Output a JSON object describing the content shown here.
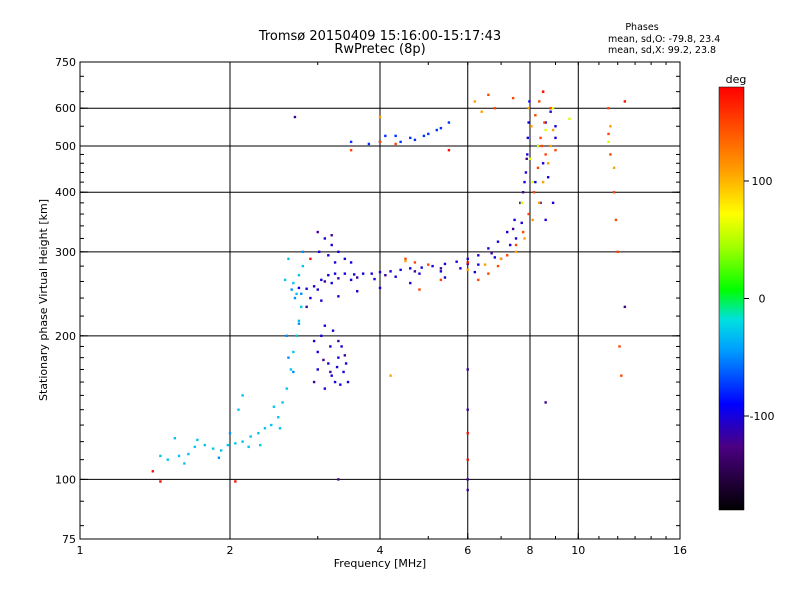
{
  "chart_data": {
    "type": "scatter",
    "title": "Tromsø 20150409 15:16:00-15:17:43",
    "subtitle": "RwPretec (8p)",
    "xlabel": "Frequency [MHz]",
    "ylabel": "Stationary phase Virtual Height [km]",
    "x_scale": "log",
    "y_scale": "log",
    "xlim": [
      1,
      16
    ],
    "ylim": [
      75,
      750
    ],
    "x_ticks": [
      {
        "value": 1,
        "label": "1"
      },
      {
        "value": 2,
        "label": "2"
      },
      {
        "value": 4,
        "label": "4"
      },
      {
        "value": 6,
        "label": "6"
      },
      {
        "value": 8,
        "label": "8"
      },
      {
        "value": 10,
        "label": "10"
      },
      {
        "value": 16,
        "label": "16"
      }
    ],
    "y_ticks": [
      {
        "value": 75,
        "label": "75"
      },
      {
        "value": 100,
        "label": "100"
      },
      {
        "value": 200,
        "label": "200"
      },
      {
        "value": 300,
        "label": "300"
      },
      {
        "value": 400,
        "label": "400"
      },
      {
        "value": 500,
        "label": "500"
      },
      {
        "value": 600,
        "label": "600"
      },
      {
        "value": 750,
        "label": "750"
      }
    ],
    "x_grid": [
      2,
      4,
      6,
      8,
      10
    ],
    "y_grid": [
      100,
      200,
      300,
      400,
      500,
      600
    ],
    "phase_stats": {
      "header": "Phases",
      "line_o": "mean, sd,O: -79.8, 23.4",
      "line_x": "mean, sd,X:  99.2, 23.8"
    },
    "colorbar": {
      "unit": "deg",
      "range": [
        -180,
        180
      ],
      "ticks": [
        {
          "value": 100,
          "label": "100"
        },
        {
          "value": 0,
          "label": "0"
        },
        {
          "value": -100,
          "label": "-100"
        }
      ]
    },
    "series": [
      {
        "phase": -35,
        "points": [
          [
            1.5,
            110
          ],
          [
            1.58,
            112
          ],
          [
            1.65,
            113
          ],
          [
            1.7,
            117
          ],
          [
            1.78,
            118
          ],
          [
            1.85,
            116
          ],
          [
            1.92,
            115
          ],
          [
            1.98,
            118
          ],
          [
            2.05,
            119
          ],
          [
            2.12,
            120
          ],
          [
            2.2,
            123
          ],
          [
            2.28,
            125
          ],
          [
            2.35,
            128
          ],
          [
            2.42,
            130
          ],
          [
            2.5,
            135
          ],
          [
            2.55,
            145
          ],
          [
            2.6,
            155
          ],
          [
            2.65,
            170
          ],
          [
            2.68,
            185
          ],
          [
            2.72,
            200
          ],
          [
            2.75,
            215
          ],
          [
            2.78,
            230
          ],
          [
            2.72,
            245
          ],
          [
            2.68,
            258
          ],
          [
            2.75,
            268
          ],
          [
            2.8,
            280
          ],
          [
            2.62,
            290
          ],
          [
            2.58,
            262
          ],
          [
            1.55,
            122
          ],
          [
            1.62,
            108
          ],
          [
            2.08,
            140
          ],
          [
            2.12,
            150
          ],
          [
            2.3,
            118
          ],
          [
            2.45,
            142
          ],
          [
            1.45,
            112
          ],
          [
            1.72,
            121
          ],
          [
            2.18,
            117
          ],
          [
            2.52,
            128
          ]
        ]
      },
      {
        "phase": -55,
        "points": [
          [
            2.66,
            250
          ],
          [
            2.7,
            240
          ],
          [
            2.78,
            245
          ],
          [
            2.62,
            180
          ],
          [
            2.68,
            168
          ],
          [
            2.75,
            212
          ],
          [
            2.8,
            300
          ],
          [
            1.9,
            111
          ],
          [
            2.0,
            125
          ],
          [
            2.6,
            200
          ]
        ]
      },
      {
        "phase": -110,
        "points": [
          [
            2.75,
            252
          ],
          [
            2.85,
            251
          ],
          [
            2.95,
            254
          ],
          [
            3.05,
            262
          ],
          [
            3.15,
            268
          ],
          [
            3.25,
            270
          ],
          [
            3.4,
            270
          ],
          [
            3.55,
            269
          ],
          [
            3.7,
            270
          ],
          [
            3.85,
            270
          ],
          [
            4.0,
            272
          ],
          [
            4.2,
            273
          ],
          [
            4.4,
            275
          ],
          [
            4.6,
            277
          ],
          [
            4.85,
            278
          ],
          [
            5.1,
            280
          ],
          [
            5.4,
            283
          ],
          [
            5.7,
            286
          ],
          [
            6.0,
            290
          ],
          [
            6.3,
            295
          ],
          [
            6.6,
            305
          ],
          [
            6.9,
            315
          ],
          [
            7.2,
            330
          ],
          [
            7.45,
            350
          ],
          [
            7.65,
            380
          ],
          [
            7.8,
            420
          ],
          [
            7.9,
            480
          ],
          [
            7.95,
            560
          ],
          [
            7.98,
            620
          ],
          [
            3.0,
            250
          ],
          [
            3.2,
            258
          ],
          [
            3.5,
            262
          ],
          [
            3.9,
            263
          ],
          [
            4.3,
            266
          ],
          [
            4.8,
            270
          ],
          [
            5.3,
            273
          ],
          [
            5.8,
            277
          ],
          [
            6.3,
            282
          ],
          [
            6.8,
            292
          ],
          [
            7.3,
            310
          ],
          [
            7.7,
            345
          ],
          [
            3.0,
            185
          ],
          [
            3.05,
            200
          ],
          [
            3.1,
            210
          ],
          [
            3.15,
            175
          ],
          [
            3.2,
            165
          ],
          [
            3.3,
            180
          ],
          [
            3.35,
            190
          ],
          [
            3.25,
            160
          ],
          [
            3.1,
            155
          ],
          [
            3.0,
            170
          ],
          [
            2.95,
            195
          ],
          [
            3.28,
            172
          ],
          [
            3.38,
            168
          ],
          [
            3.02,
            300
          ],
          [
            3.1,
            320
          ],
          [
            3.2,
            310
          ],
          [
            3.3,
            300
          ],
          [
            3.4,
            290
          ],
          [
            3.5,
            285
          ],
          [
            3.15,
            295
          ],
          [
            3.25,
            285
          ],
          [
            8.3,
            500
          ],
          [
            8.5,
            460
          ],
          [
            8.7,
            430
          ],
          [
            8.9,
            380
          ],
          [
            9.0,
            520
          ],
          [
            8.6,
            560
          ],
          [
            8.8,
            590
          ],
          [
            9.0,
            550
          ],
          [
            8.2,
            420
          ],
          [
            8.4,
            380
          ],
          [
            8.6,
            350
          ],
          [
            2.9,
            240
          ],
          [
            3.05,
            237
          ],
          [
            3.3,
            242
          ],
          [
            3.6,
            248
          ],
          [
            4.0,
            252
          ],
          [
            4.6,
            258
          ],
          [
            5.4,
            265
          ],
          [
            6.2,
            272
          ],
          [
            7.0,
            290
          ],
          [
            7.5,
            320
          ],
          [
            7.85,
            440
          ],
          [
            7.92,
            520
          ],
          [
            3.18,
            190
          ],
          [
            3.22,
            205
          ],
          [
            3.33,
            158
          ],
          [
            3.42,
            175
          ],
          [
            3.45,
            160
          ]
        ]
      },
      {
        "phase": -130,
        "points": [
          [
            3.1,
            260
          ],
          [
            3.3,
            264
          ],
          [
            3.6,
            265
          ],
          [
            4.1,
            268
          ],
          [
            4.7,
            273
          ],
          [
            5.3,
            277
          ],
          [
            6.0,
            283
          ],
          [
            6.7,
            298
          ],
          [
            7.4,
            335
          ],
          [
            7.75,
            400
          ],
          [
            7.88,
            470
          ],
          [
            2.95,
            160
          ],
          [
            3.08,
            178
          ],
          [
            3.18,
            168
          ],
          [
            3.3,
            195
          ],
          [
            3.4,
            182
          ],
          [
            2.85,
            230
          ],
          [
            3.0,
            330
          ],
          [
            3.2,
            325
          ],
          [
            6.0,
            170
          ],
          [
            6.0,
            140
          ],
          [
            6.0,
            100
          ],
          [
            6.0,
            95
          ],
          [
            8.6,
            145
          ],
          [
            3.3,
            100
          ],
          [
            12.4,
            230
          ],
          [
            2.7,
            575
          ]
        ]
      },
      {
        "phase": -85,
        "points": [
          [
            3.5,
            510
          ],
          [
            3.8,
            505
          ],
          [
            4.0,
            510
          ],
          [
            4.3,
            525
          ],
          [
            4.6,
            520
          ],
          [
            4.9,
            525
          ],
          [
            5.2,
            540
          ],
          [
            5.5,
            560
          ],
          [
            4.1,
            525
          ],
          [
            4.4,
            510
          ],
          [
            4.7,
            515
          ],
          [
            5.0,
            530
          ],
          [
            5.3,
            545
          ]
        ]
      },
      {
        "phase": 150,
        "points": [
          [
            6.3,
            262
          ],
          [
            6.6,
            270
          ],
          [
            6.9,
            280
          ],
          [
            7.2,
            295
          ],
          [
            7.5,
            310
          ],
          [
            7.75,
            330
          ],
          [
            7.95,
            360
          ],
          [
            8.15,
            400
          ],
          [
            8.3,
            450
          ],
          [
            8.45,
            500
          ],
          [
            8.55,
            560
          ],
          [
            8.35,
            620
          ],
          [
            8.2,
            580
          ],
          [
            8.4,
            520
          ],
          [
            8.6,
            480
          ],
          [
            6.6,
            640
          ],
          [
            6.8,
            600
          ],
          [
            4.5,
            290
          ],
          [
            4.7,
            285
          ],
          [
            5.0,
            282
          ],
          [
            4.8,
            250
          ],
          [
            5.3,
            262
          ],
          [
            7.4,
            630
          ],
          [
            8.5,
            650
          ],
          [
            8.8,
            600
          ],
          [
            9.0,
            490
          ],
          [
            11.5,
            600
          ],
          [
            11.5,
            530
          ],
          [
            11.6,
            480
          ],
          [
            11.8,
            400
          ],
          [
            11.9,
            350
          ],
          [
            12.0,
            300
          ],
          [
            12.1,
            190
          ],
          [
            12.2,
            165
          ],
          [
            4.0,
            510
          ],
          [
            4.3,
            505
          ],
          [
            3.5,
            490
          ]
        ]
      },
      {
        "phase": 110,
        "points": [
          [
            6.0,
            275
          ],
          [
            6.5,
            282
          ],
          [
            7.0,
            290
          ],
          [
            7.5,
            300
          ],
          [
            7.8,
            320
          ],
          [
            8.1,
            350
          ],
          [
            8.35,
            380
          ],
          [
            8.5,
            420
          ],
          [
            8.7,
            460
          ],
          [
            8.8,
            500
          ],
          [
            8.9,
            540
          ],
          [
            7.95,
            600
          ],
          [
            8.05,
            550
          ],
          [
            11.6,
            550
          ],
          [
            11.8,
            450
          ],
          [
            6.2,
            620
          ],
          [
            6.4,
            590
          ],
          [
            4.2,
            165
          ],
          [
            4.0,
            575
          ],
          [
            4.5,
            287
          ]
        ]
      },
      {
        "phase": 60,
        "points": [
          [
            8.0,
            470
          ],
          [
            8.3,
            500
          ],
          [
            8.6,
            540
          ],
          [
            8.9,
            600
          ],
          [
            9.6,
            570
          ],
          [
            11.5,
            510
          ],
          [
            7.7,
            380
          ],
          [
            8.1,
            420
          ]
        ]
      },
      {
        "phase": 175,
        "points": [
          [
            1.4,
            104
          ],
          [
            1.45,
            99
          ],
          [
            2.05,
            99
          ],
          [
            12.4,
            620
          ],
          [
            5.5,
            490
          ],
          [
            6.0,
            285
          ],
          [
            2.9,
            290
          ],
          [
            6.0,
            110
          ],
          [
            6.0,
            125
          ],
          [
            8.5,
            650
          ]
        ]
      }
    ]
  }
}
